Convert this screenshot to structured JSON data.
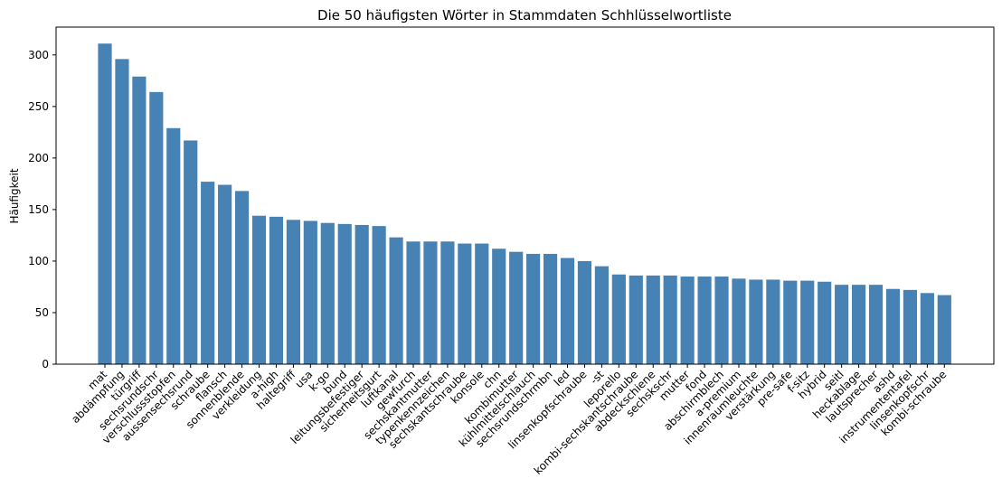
{
  "chart_data": {
    "type": "bar",
    "title": "Die 50 häufigsten Wörter in Stammdaten Schhlüsselwortliste",
    "xlabel": "",
    "ylabel": "Häufigkeit",
    "ylim": [
      0,
      327
    ],
    "yticks": [
      0,
      50,
      100,
      150,
      200,
      250,
      300
    ],
    "bar_color": "#4682b4",
    "grid": false,
    "legend": "none",
    "categories": [
      "mat",
      "abdämpfung",
      "türgriff",
      "sechsrundschr",
      "verschlussstopfen",
      "aussensechsrund",
      "schraube",
      "flansch",
      "sonnenblende",
      "verkleidung",
      "a-high",
      "haltegriff",
      "usa",
      "k-go",
      "bund",
      "leitungsbefestiger",
      "sicherheitsgurt",
      "luftkanal",
      "gewfurch",
      "sechskantmutter",
      "typenkennzeichen",
      "sechskantschraube",
      "konsole",
      "chn",
      "kombimutter",
      "kühlmittelschlauch",
      "sechsrundschrmbn",
      "led",
      "linsenkopfschraube",
      "-st",
      "leporello",
      "kombi-sechskantschraube",
      "abdeckschiene",
      "sechskschr",
      "mutter",
      "fond",
      "abschirmblech",
      "a-premium",
      "innenraumleuchte",
      "verstärkung",
      "pre-safe",
      "f-sitz",
      "hybrid",
      "seitl",
      "heckablage",
      "lautsprecher",
      "ashd",
      "instrumententafel",
      "linsenkopfschr",
      "kombi-schraube"
    ],
    "values": [
      311,
      296,
      279,
      264,
      229,
      217,
      177,
      174,
      168,
      144,
      143,
      140,
      139,
      137,
      136,
      135,
      134,
      123,
      119,
      119,
      119,
      117,
      117,
      112,
      109,
      107,
      107,
      103,
      100,
      95,
      87,
      86,
      86,
      86,
      85,
      85,
      85,
      83,
      82,
      82,
      81,
      81,
      80,
      77,
      77,
      77,
      73,
      72,
      69,
      67
    ]
  }
}
